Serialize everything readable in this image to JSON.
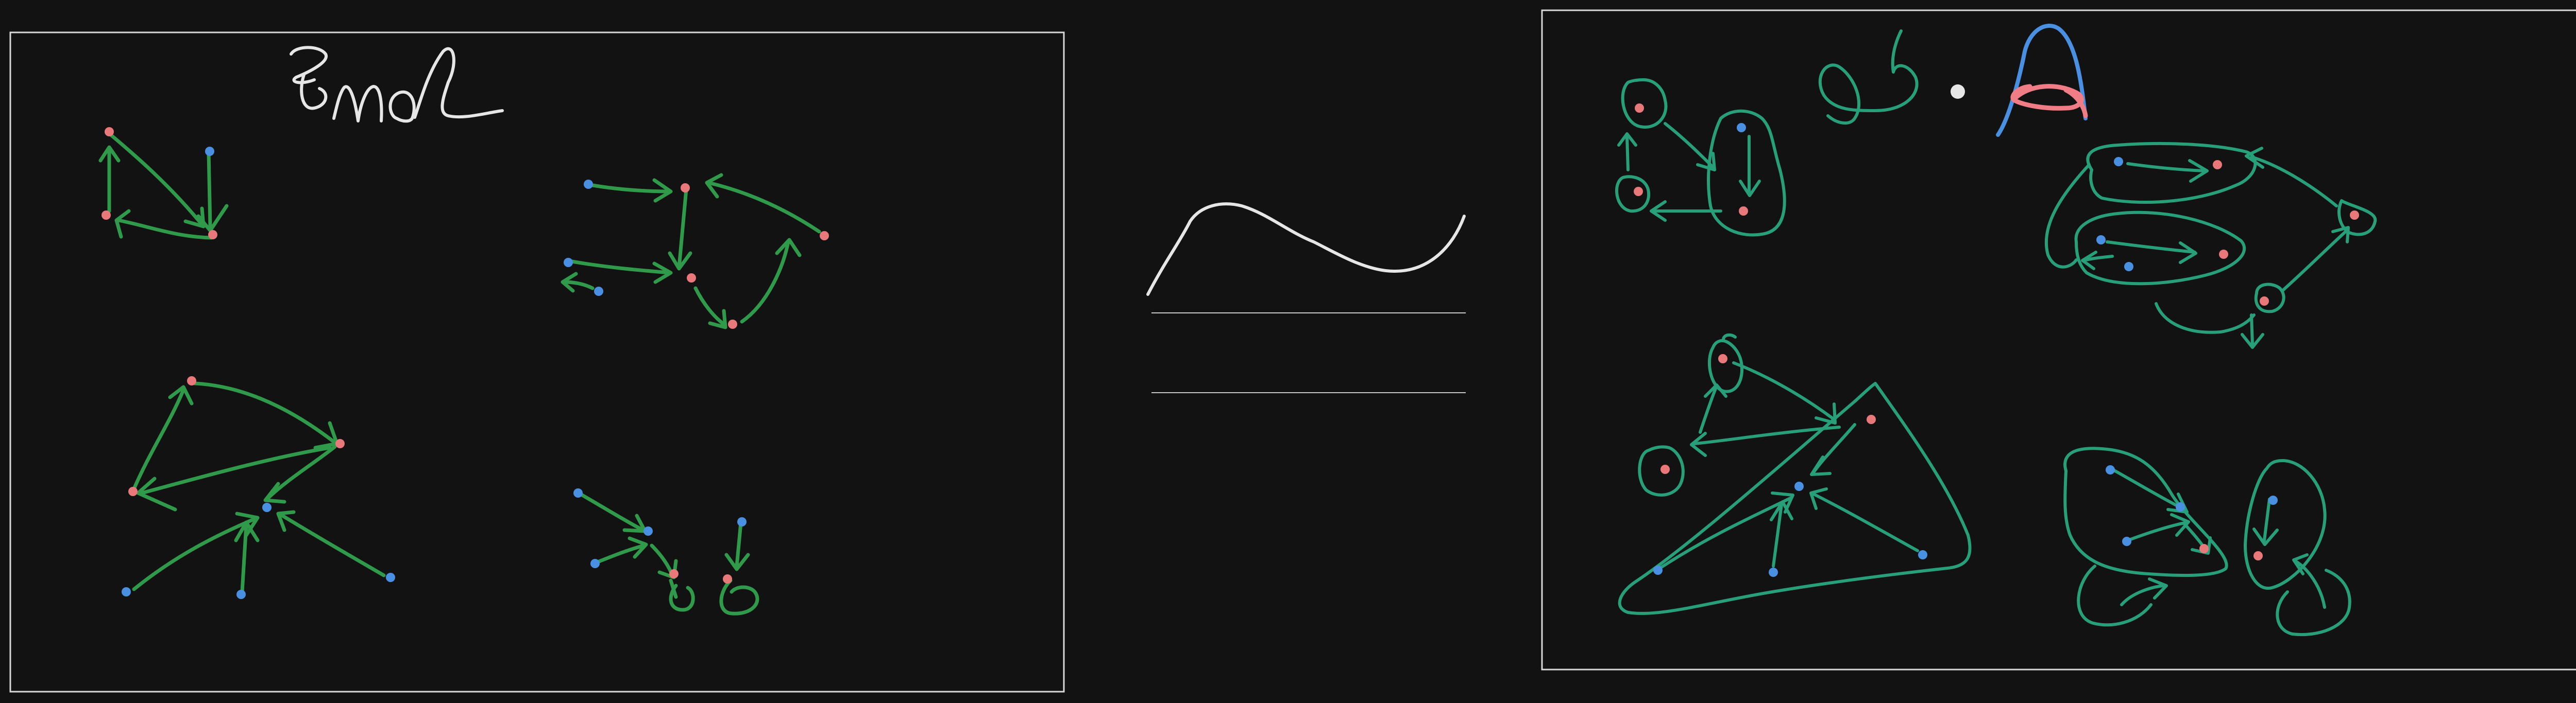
{
  "canvas": {
    "background": "#121212",
    "frame_color": "#d8d8d8"
  },
  "colors": {
    "arrow_green": "#2f9b4a",
    "teal": "#27a07a",
    "node_red": "#e8787a",
    "node_blue": "#4a90e2",
    "ink_white": "#e6e6e6",
    "symbol_blue": "#4a90e2",
    "symbol_red": "#f07c86"
  },
  "left_panel": {
    "handwritten_title": "2nd"
  },
  "right_panel": {
    "handwritten_symbols": [
      "δ",
      "·",
      "A"
    ]
  }
}
